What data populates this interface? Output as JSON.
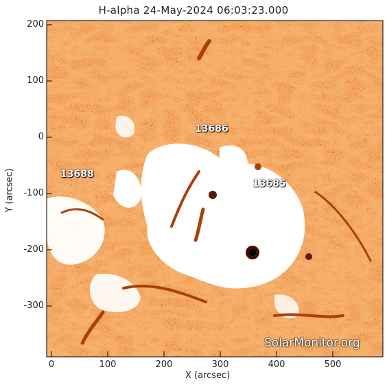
{
  "title": "H-alpha 24-May-2024 06:03:23.000",
  "axes": {
    "xlabel": "X (arcsec)",
    "ylabel": "Y (arcsec)",
    "xticks": [
      "0",
      "100",
      "200",
      "300",
      "400",
      "500"
    ],
    "yticks": [
      "200",
      "100",
      "0",
      "-100",
      "-200",
      "-300"
    ]
  },
  "active_regions": [
    "13686",
    "13688",
    "13685"
  ],
  "watermark": "SolarMonitor.org",
  "colors": {
    "background": "#ffffff",
    "chromosphere_base": "#f08a3c",
    "chromosphere_dark": "#b0440e",
    "plage": "#ffffff"
  }
}
